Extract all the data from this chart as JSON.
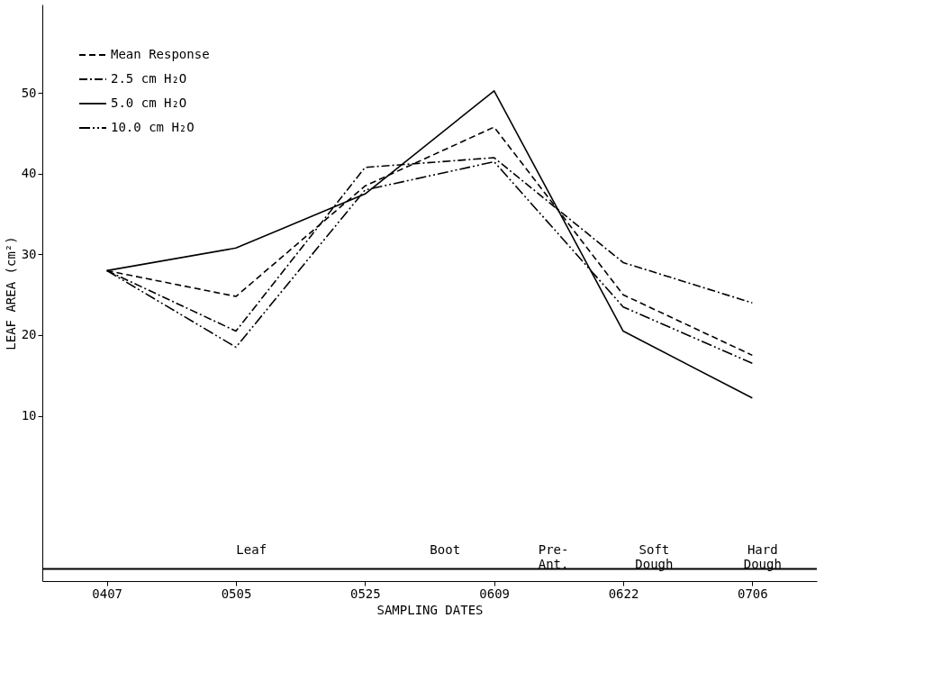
{
  "chart_data": {
    "type": "line",
    "xlabel": "SAMPLING DATES",
    "ylabel": "LEAF AREA (cm²)",
    "categories": [
      "0407",
      "0505",
      "0525",
      "0609",
      "0622",
      "0706"
    ],
    "series": [
      {
        "name": "Mean Response",
        "color": "#000000",
        "line_style": "dashed",
        "values": [
          28,
          24.8,
          38.5,
          45.8,
          25,
          17.5
        ]
      },
      {
        "name": "2.5 cm H₂O",
        "color": "#000000",
        "line_style": "dashdot",
        "values": [
          28,
          20.5,
          40.8,
          42,
          29,
          24
        ]
      },
      {
        "name": "5.0 cm H₂O",
        "color": "#000000",
        "line_style": "solid",
        "values": [
          28,
          30.8,
          37.5,
          50.3,
          20.5,
          12.2
        ]
      },
      {
        "name": "10.0 cm H₂O",
        "color": "#000000",
        "line_style": "dashdotdot",
        "values": [
          28,
          18.5,
          38,
          41.5,
          23.5,
          16.5
        ]
      }
    ],
    "ylim": [
      -10.5,
      61
    ],
    "yticks": [
      10,
      20,
      30,
      40,
      50
    ],
    "ref_lines": [
      {
        "axis": "y",
        "value": -9,
        "label": null
      }
    ],
    "annotations": [
      "Leaf",
      "Boot",
      "Pre-\nAnt.",
      "Soft\nDough",
      "Hard\nDough"
    ],
    "legend": "top left",
    "grid": false,
    "marker": "none"
  }
}
